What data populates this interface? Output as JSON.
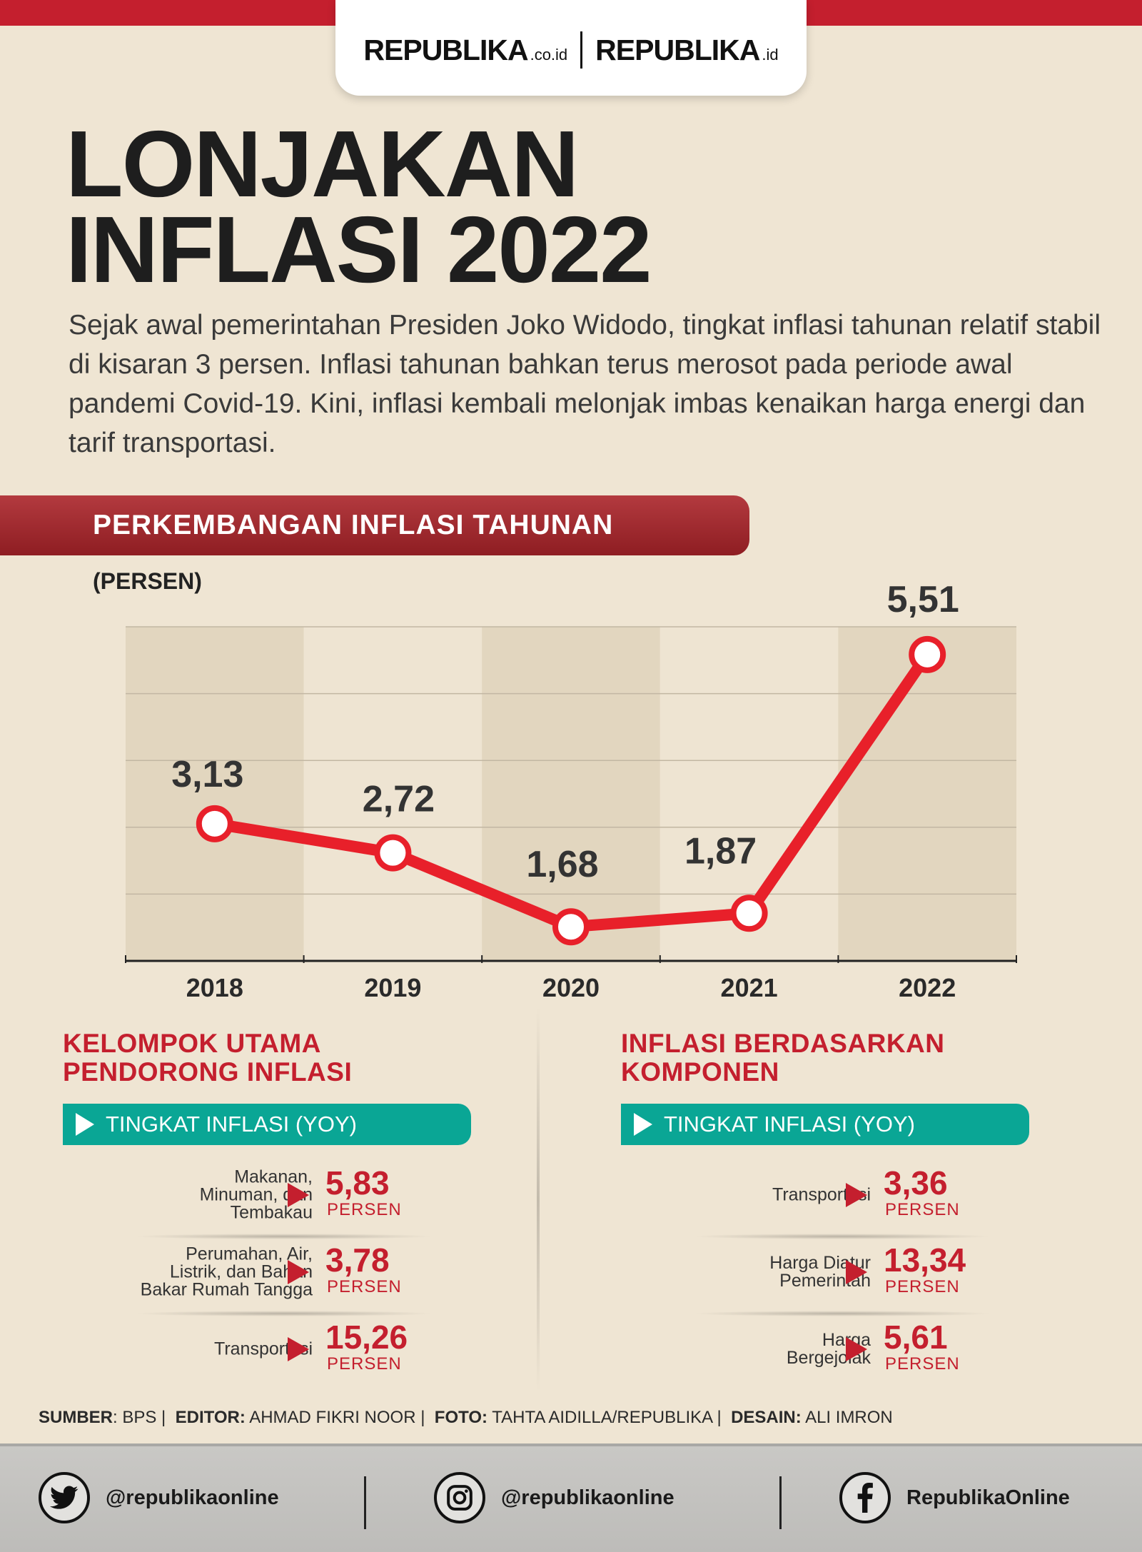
{
  "brand": {
    "logo1": "REPUBLIKA",
    "logo1_suffix": ".co.id",
    "logo2": "REPUBLIKA",
    "logo2_suffix": ".id",
    "accent": "#c41f2e",
    "teal": "#0aa695"
  },
  "headline": {
    "line1": "LONJAKAN",
    "line2": "INFLASI 2022"
  },
  "intro": "Sejak awal pemerintahan Presiden Joko Widodo, tingkat inflasi tahunan relatif stabil di kisaran 3 persen. Inflasi tahunan bahkan terus merosot pada periode awal pandemi Covid-19. Kini, inflasi kembali melonjak imbas kenaikan harga energi dan tarif transportasi.",
  "chart_data": {
    "type": "line",
    "title": "PERKEMBANGAN INFLASI TAHUNAN",
    "ylabel": "(PERSEN)",
    "categories": [
      "2018",
      "2019",
      "2020",
      "2021",
      "2022"
    ],
    "values": [
      3.13,
      2.72,
      1.68,
      1.87,
      5.51
    ],
    "value_labels": [
      "3,13",
      "2,72",
      "1,68",
      "1,87",
      "5,51"
    ],
    "ylim": [
      1.2,
      5.9
    ],
    "grid": true,
    "line_color": "#e8202a"
  },
  "panels": {
    "left": {
      "title_line1": "KELOMPOK UTAMA",
      "title_line2": "PENDORONG INFLASI",
      "pill": "TINGKAT INFLASI (YOY)",
      "rows": [
        {
          "label": "Makanan,\nMinuman, dan\nTembakau",
          "value": "5,83",
          "unit": "PERSEN"
        },
        {
          "label": "Perumahan, Air,\nListrik, dan Bahan\nBakar Rumah Tangga",
          "value": "3,78",
          "unit": "PERSEN"
        },
        {
          "label": "Transportasi",
          "value": "15,26",
          "unit": "PERSEN"
        }
      ]
    },
    "right": {
      "title_line1": "INFLASI BERDASARKAN",
      "title_line2": "KOMPONEN",
      "pill": "TINGKAT INFLASI (YOY)",
      "rows": [
        {
          "label": "Transportasi",
          "value": "3,36",
          "unit": "PERSEN"
        },
        {
          "label": "Harga Diatur\nPemerintah",
          "value": "13,34",
          "unit": "PERSEN"
        },
        {
          "label": "Harga\nBergejolak",
          "value": "5,61",
          "unit": "PERSEN"
        }
      ]
    }
  },
  "credits": {
    "sumber_k": "SUMBER",
    "sumber_v": ": BPS |",
    "editor_k": "EDITOR:",
    "editor_v": "AHMAD FIKRI NOOR |",
    "foto_k": "FOTO:",
    "foto_v": "TAHTA AIDILLA/REPUBLIKA |",
    "desain_k": "DESAIN:",
    "desain_v": "ALI IMRON"
  },
  "footer": {
    "twitter": "@republikaonline",
    "instagram": "@republikaonline",
    "facebook": "RepublikaOnline"
  }
}
